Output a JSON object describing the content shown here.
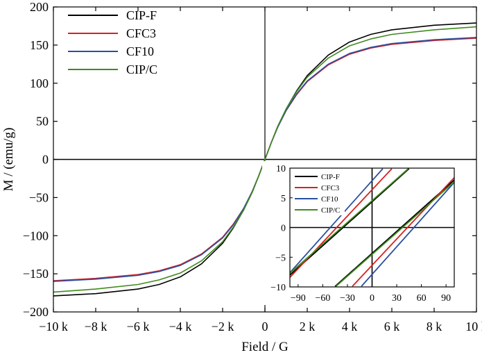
{
  "chart_data": [
    {
      "type": "line",
      "xlabel": "Field / G",
      "ylabel": "M  / (emu/g)",
      "xlim": [
        -10000,
        10000
      ],
      "ylim": [
        -200,
        200
      ],
      "xticks": [
        -10000,
        -8000,
        -6000,
        -4000,
        -2000,
        0,
        2000,
        4000,
        6000,
        8000,
        10000
      ],
      "xtick_labels": [
        "−10 k",
        "−8 k",
        "−6 k",
        "−4 k",
        "−2 k",
        "0",
        "2 k",
        "4 k",
        "6 k",
        "8 k",
        "10 k"
      ],
      "yticks": [
        -200,
        -150,
        -100,
        -50,
        0,
        50,
        100,
        150,
        200
      ],
      "ytick_labels": [
        "−200",
        "−150",
        "−100",
        "−50",
        "0",
        "50",
        "100",
        "150",
        "200"
      ],
      "legend_position": "top-left",
      "grid": false,
      "series": [
        {
          "name": "CIP-F",
          "color": "#000000",
          "x": [
            -10000,
            -8000,
            -6000,
            -5000,
            -4000,
            -3000,
            -2000,
            -1500,
            -1000,
            -600,
            -300,
            0,
            300,
            600,
            1000,
            1500,
            2000,
            3000,
            4000,
            5000,
            6000,
            8000,
            10000
          ],
          "y": [
            -179,
            -176,
            -170,
            -164,
            -154,
            -137,
            -110,
            -90,
            -66,
            -43,
            -22,
            0,
            22,
            43,
            66,
            90,
            110,
            137,
            154,
            164,
            170,
            176,
            179
          ]
        },
        {
          "name": "CFC3",
          "color": "#d62020",
          "x": [
            -10000,
            -8000,
            -6000,
            -5000,
            -4000,
            -3000,
            -2000,
            -1500,
            -1000,
            -600,
            -300,
            0,
            300,
            600,
            1000,
            1500,
            2000,
            3000,
            4000,
            5000,
            6000,
            8000,
            10000
          ],
          "y": [
            -159,
            -156,
            -151,
            -146,
            -138,
            -124,
            -102,
            -85,
            -64,
            -42,
            -22,
            0,
            22,
            42,
            64,
            85,
            102,
            124,
            138,
            146,
            151,
            156,
            159
          ]
        },
        {
          "name": "CF10",
          "color": "#2a4ea0",
          "x": [
            -10000,
            -8000,
            -6000,
            -5000,
            -4000,
            -3000,
            -2000,
            -1500,
            -1000,
            -600,
            -300,
            0,
            300,
            600,
            1000,
            1500,
            2000,
            3000,
            4000,
            5000,
            6000,
            8000,
            10000
          ],
          "y": [
            -160,
            -157,
            -152,
            -147,
            -139,
            -125,
            -103,
            -86,
            -64,
            -42,
            -22,
            0,
            22,
            42,
            64,
            86,
            103,
            125,
            139,
            147,
            152,
            157,
            160
          ]
        },
        {
          "name": "CIP/C",
          "color": "#3e8a1c",
          "x": [
            -10000,
            -8000,
            -6000,
            -5000,
            -4000,
            -3000,
            -2000,
            -1500,
            -1000,
            -600,
            -300,
            0,
            300,
            600,
            1000,
            1500,
            2000,
            3000,
            4000,
            5000,
            6000,
            8000,
            10000
          ],
          "y": [
            -174,
            -170,
            -164,
            -158,
            -149,
            -133,
            -108,
            -89,
            -66,
            -43,
            -22,
            0,
            22,
            43,
            66,
            89,
            108,
            133,
            149,
            158,
            164,
            170,
            174
          ]
        }
      ]
    },
    {
      "type": "line",
      "xlabel": "",
      "ylabel": "",
      "xlim": [
        -100,
        100
      ],
      "ylim": [
        -10,
        10
      ],
      "xticks": [
        -90,
        -60,
        -30,
        0,
        30,
        60,
        90
      ],
      "xtick_labels": [
        "−90",
        "−60",
        "−30",
        "0",
        "30",
        "60",
        "90"
      ],
      "yticks": [
        -10,
        -5,
        0,
        5,
        10
      ],
      "ytick_labels": [
        "−10",
        "−5",
        "0",
        "5",
        "10"
      ],
      "legend_position": "top-left",
      "grid": false,
      "series": [
        {
          "name": "CIP-F",
          "color": "#000000",
          "branches": [
            {
              "x": [
                -100,
                45
              ],
              "y": [
                -8.0,
                9.9
              ]
            },
            {
              "x": [
                -45,
                100
              ],
              "y": [
                -9.9,
                8.0
              ]
            }
          ]
        },
        {
          "name": "CFC3",
          "color": "#d62020",
          "branches": [
            {
              "x": [
                -100,
                24
              ],
              "y": [
                -8.4,
                9.9
              ]
            },
            {
              "x": [
                -24,
                100
              ],
              "y": [
                -9.9,
                8.4
              ]
            }
          ]
        },
        {
          "name": "CF10",
          "color": "#2a4ea0",
          "branches": [
            {
              "x": [
                -100,
                13
              ],
              "y": [
                -7.6,
                9.9
              ]
            },
            {
              "x": [
                -13,
                100
              ],
              "y": [
                -9.9,
                7.6
              ]
            }
          ]
        },
        {
          "name": "CIP/C",
          "color": "#3e8a1c",
          "branches": [
            {
              "x": [
                -100,
                44
              ],
              "y": [
                -7.7,
                9.9
              ]
            },
            {
              "x": [
                -44,
                100
              ],
              "y": [
                -9.9,
                7.7
              ]
            }
          ]
        }
      ]
    }
  ]
}
